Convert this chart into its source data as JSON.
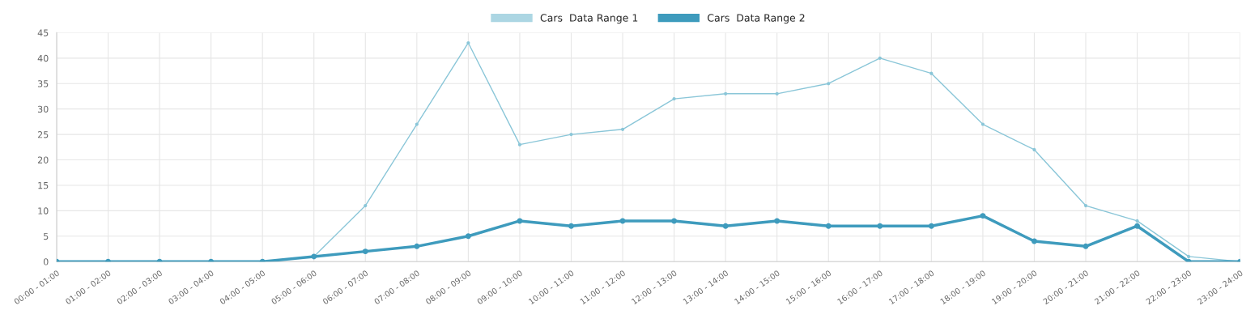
{
  "chart_data": {
    "type": "line",
    "categories": [
      "00:00 - 01:00",
      "01:00 - 02:00",
      "02:00 - 03:00",
      "03:00 - 04:00",
      "04:00 - 05:00",
      "05:00 - 06:00",
      "06:00 - 07:00",
      "07:00 - 08:00",
      "08:00 - 09:00",
      "09:00 - 10:00",
      "10:00 - 11:00",
      "11:00 - 12:00",
      "12:00 - 13:00",
      "13:00 - 14:00",
      "14:00 - 15:00",
      "15:00 - 16:00",
      "16:00 - 17:00",
      "17:00 - 18:00",
      "18:00 - 19:00",
      "19:00 - 20:00",
      "20:00 - 21:00",
      "21:00 - 22:00",
      "22:00 - 23:00",
      "23:00 - 24:00"
    ],
    "series": [
      {
        "name": "Cars  Data Range 1",
        "color": "#8ac6d8",
        "values": [
          0,
          0,
          0,
          0,
          0,
          1,
          11,
          27,
          43,
          23,
          25,
          26,
          32,
          33,
          33,
          35,
          40,
          37,
          27,
          22,
          11,
          8,
          1,
          0
        ]
      },
      {
        "name": "Cars  Data Range 2",
        "color": "#3e9bbd",
        "values": [
          0,
          0,
          0,
          0,
          0,
          1,
          2,
          3,
          5,
          8,
          7,
          8,
          8,
          7,
          8,
          7,
          7,
          7,
          9,
          4,
          3,
          7,
          0,
          0
        ]
      }
    ],
    "ylim": [
      0,
      45
    ],
    "yticks": [
      0,
      5,
      10,
      15,
      20,
      25,
      30,
      35,
      40,
      45
    ],
    "grid": true,
    "legend": "top",
    "marker": "circle",
    "line_style": "solid"
  }
}
